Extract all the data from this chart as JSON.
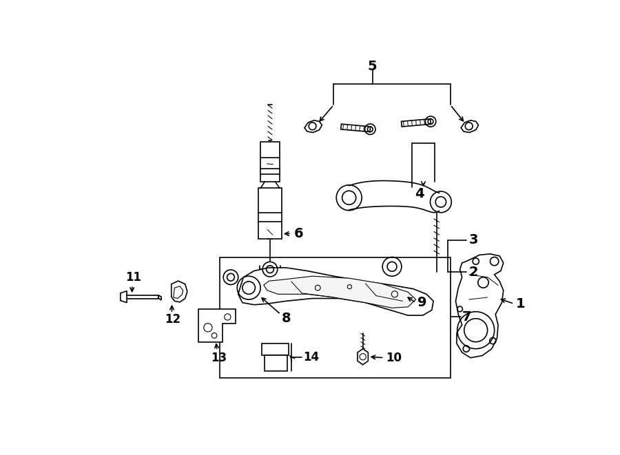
{
  "bg_color": "#ffffff",
  "line_color": "#000000",
  "fig_width": 9.0,
  "fig_height": 6.61,
  "dpi": 100,
  "label_fontsize": 14,
  "small_fontsize": 12,
  "lw": 1.2
}
